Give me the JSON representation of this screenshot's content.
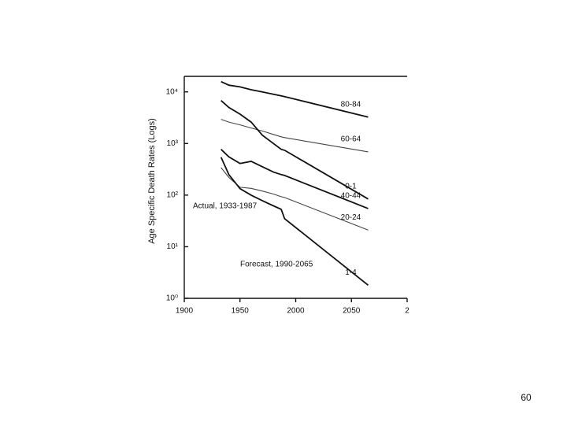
{
  "chart_data": {
    "type": "line",
    "y_label": "Age Specific Death Rates (Logs)",
    "annotations": [
      "Actual, 1933-1987",
      "Forecast, 1990-2065"
    ],
    "x": [
      1933,
      1940,
      1950,
      1960,
      1970,
      1980,
      1987,
      1990,
      2065
    ],
    "series": [
      {
        "name": "80-84",
        "color": "#111111",
        "values": [
          15800,
          13500,
          12500,
          11000,
          10000,
          9000,
          8400,
          8100,
          3240
        ]
      },
      {
        "name": "60-64",
        "color": "#444444",
        "values": [
          2940,
          2600,
          2300,
          2000,
          1750,
          1500,
          1350,
          1300,
          690
        ]
      },
      {
        "name": "0-1",
        "color": "#111111",
        "values": [
          6800,
          5000,
          3700,
          2600,
          1450,
          1000,
          770,
          740,
          84
        ]
      },
      {
        "name": "40-44",
        "color": "#111111",
        "values": [
          770,
          550,
          410,
          450,
          355,
          280,
          250,
          240,
          55
        ]
      },
      {
        "name": "20-24",
        "color": "#444444",
        "values": [
          340,
          220,
          142,
          135,
          120,
          105,
          93,
          90,
          21
        ]
      },
      {
        "name": "1-4",
        "color": "#111111",
        "values": [
          540,
          250,
          133,
          100,
          78,
          62,
          53,
          35,
          1.8
        ]
      }
    ],
    "xlim": [
      1900,
      2100
    ],
    "xticks": [
      1900,
      1950,
      2000,
      2050,
      {
        "value": 2100,
        "label": "2"
      }
    ],
    "ylim": [
      1,
      20000
    ],
    "log_y": true,
    "yticks": [
      {
        "value": 1,
        "label": "10⁰"
      },
      {
        "value": 10,
        "label": "10¹"
      },
      {
        "value": 100,
        "label": "10²"
      },
      {
        "value": 1000,
        "label": "10³"
      },
      {
        "value": 10000,
        "label": "10⁴"
      }
    ]
  },
  "page_number": "60"
}
